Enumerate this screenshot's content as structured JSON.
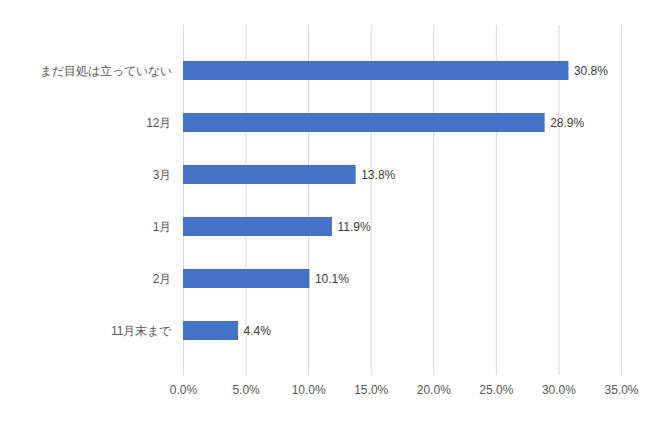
{
  "chart_data": {
    "type": "bar",
    "orientation": "horizontal",
    "categories": [
      "まだ目処は立っていない",
      "12月",
      "3月",
      "1月",
      "2月",
      "11月末まで"
    ],
    "values": [
      30.8,
      28.9,
      13.8,
      11.9,
      10.1,
      4.4
    ],
    "value_labels": [
      "30.8%",
      "28.9%",
      "13.8%",
      "11.9%",
      "10.1%",
      "4.4%"
    ],
    "color": "#4472c4",
    "xlim": [
      0,
      35
    ],
    "xticks": [
      {
        "value": 0,
        "label": "0.0%"
      },
      {
        "value": 5,
        "label": "5.0%"
      },
      {
        "value": 10,
        "label": "10.0%"
      },
      {
        "value": 15,
        "label": "15.0%"
      },
      {
        "value": 20,
        "label": "20.0%"
      },
      {
        "value": 25,
        "label": "25.0%"
      },
      {
        "value": 30,
        "label": "30.0%"
      },
      {
        "value": 35,
        "label": "35.0%"
      }
    ],
    "grid": true,
    "data_labels": true
  }
}
